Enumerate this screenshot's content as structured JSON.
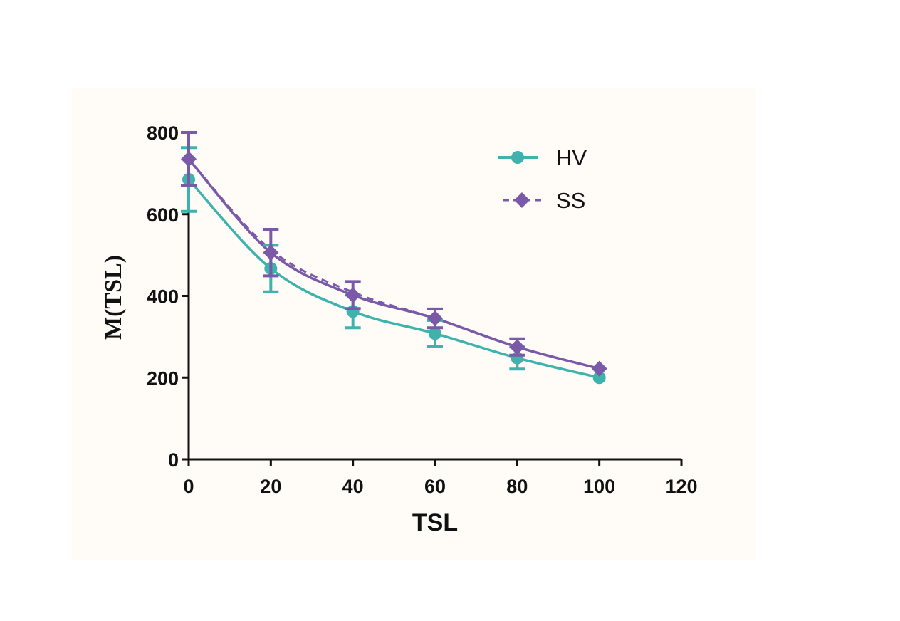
{
  "chart_data": {
    "type": "line",
    "title": "",
    "xlabel": "TSL",
    "ylabel": "M(TSL)",
    "xlim": [
      0,
      120
    ],
    "ylim": [
      0,
      800
    ],
    "xticks": [
      0,
      20,
      40,
      60,
      80,
      100,
      120
    ],
    "yticks": [
      0,
      200,
      400,
      600,
      800
    ],
    "x": [
      0,
      20,
      40,
      60,
      80,
      100
    ],
    "legend_position": "top-right",
    "series": [
      {
        "name": "HV",
        "marker": "circle",
        "line_style": "solid",
        "color": "#3eb3ad",
        "values": [
          685,
          467,
          362,
          308,
          248,
          200
        ],
        "errors": [
          78,
          57,
          40,
          32,
          27,
          0
        ]
      },
      {
        "name": "SS",
        "marker": "diamond",
        "line_style": "dashed",
        "color": "#7a5aa8",
        "values": [
          735,
          506,
          402,
          345,
          275,
          222
        ],
        "errors": [
          65,
          57,
          33,
          23,
          20,
          0
        ]
      }
    ]
  }
}
